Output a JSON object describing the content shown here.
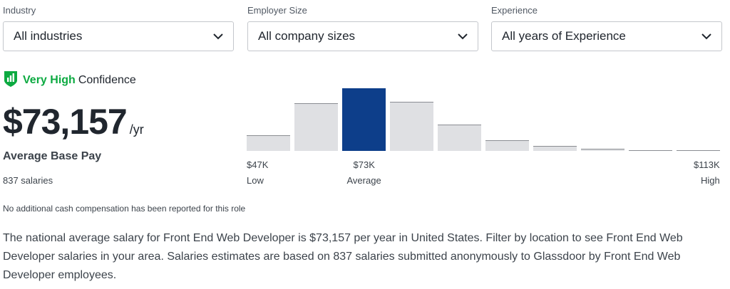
{
  "filters": {
    "industry": {
      "label": "Industry",
      "value": "All industries"
    },
    "employer_size": {
      "label": "Employer Size",
      "value": "All company sizes"
    },
    "experience": {
      "label": "Experience",
      "value": "All years of Experience"
    }
  },
  "confidence": {
    "level": "Very High",
    "suffix": "Confidence",
    "icon": "shield-bars-icon",
    "color": "#0caa41"
  },
  "pay": {
    "amount": "$73,157",
    "period": "/yr",
    "label": "Average Base Pay",
    "count": "837 salaries"
  },
  "no_cash_note": "No additional cash compensation has been reported for this role",
  "description": "The national average salary for Front End Web Developer is $73,157 per year in United States. Filter by location to see Front End Web Developer salaries in your area. Salaries estimates are based on 837 salaries submitted anonymously to Glassdoor by Front End Web Developer employees.",
  "chart_data": {
    "type": "bar",
    "values": [
      22,
      67,
      88,
      69,
      37,
      15,
      7,
      3,
      1,
      1
    ],
    "highlight_index": 2,
    "colors": {
      "bar": "#dfe0e3",
      "highlight": "#0d3e8a",
      "bar_top": "#8a8d92"
    },
    "ticks": [
      {
        "value": "$47K",
        "caption": "Low",
        "bar": 0,
        "align": "left"
      },
      {
        "value": "$73K",
        "caption": "Average",
        "bar": 2,
        "align": "center"
      },
      {
        "value": "$113K",
        "caption": "High",
        "bar": 9,
        "align": "right"
      }
    ]
  }
}
